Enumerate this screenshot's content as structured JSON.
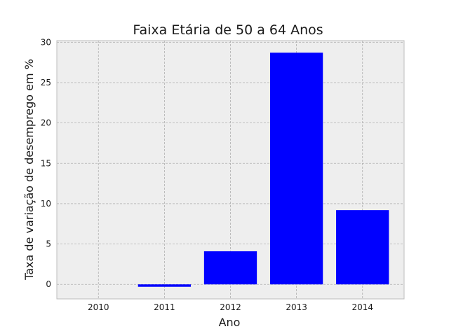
{
  "chart_data": {
    "type": "bar",
    "title": "Faixa Etária de 50 a 64 Anos",
    "xlabel": "Ano",
    "ylabel": "Taxa de variação de desemprego em %",
    "categories": [
      "2010",
      "2011",
      "2012",
      "2013",
      "2014"
    ],
    "values": [
      0,
      -0.3,
      4.1,
      28.7,
      9.2
    ],
    "ylim": [
      -1.8,
      30.2
    ],
    "yticks": [
      0,
      5,
      10,
      15,
      20,
      25,
      30
    ],
    "grid": true,
    "legend": "none",
    "colors": {
      "bar": "#0000ff",
      "plot_background": "#eeeeee",
      "grid": "#b0b0b0",
      "frame": "#bcbcbc"
    }
  }
}
